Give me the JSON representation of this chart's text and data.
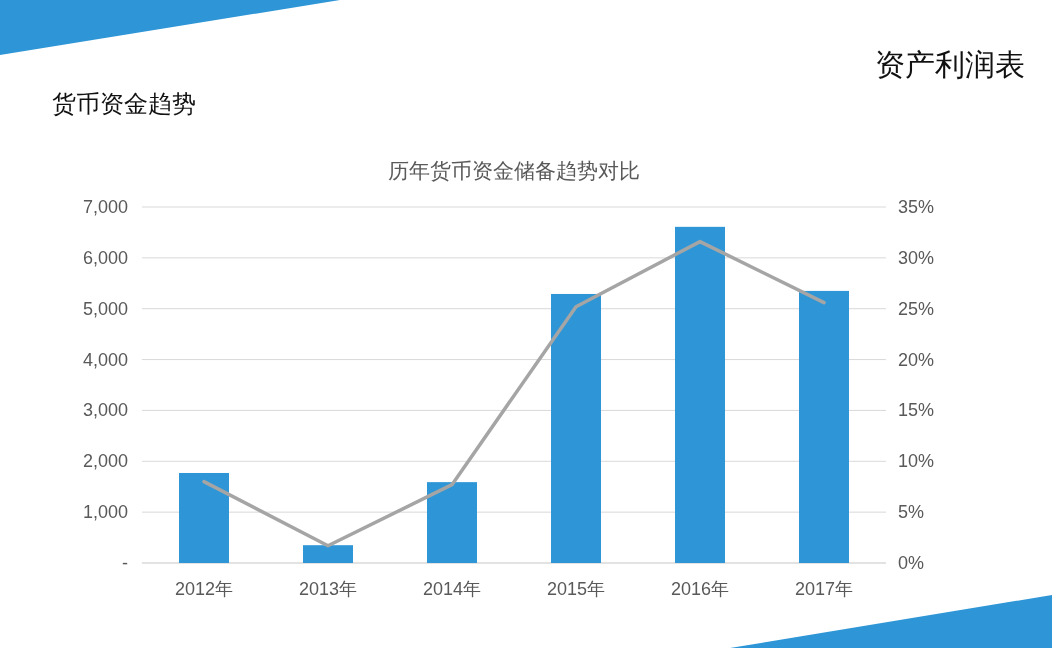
{
  "chart_data": {
    "type": "bar",
    "title": "历年货币资金储备趋势对比",
    "annotations": [
      "货币资金趋势",
      "资产利润表"
    ],
    "categories": [
      "2012年",
      "2013年",
      "2014年",
      "2015年",
      "2016年",
      "2017年"
    ],
    "series": [
      {
        "color": "#2e96d6",
        "values": [
          1770,
          350,
          1590,
          5290,
          6610,
          5350
        ]
      },
      {
        "type": "line",
        "axis": "y2",
        "color": "#a5a5a5",
        "values": [
          8.0,
          1.7,
          7.7,
          25.2,
          31.6,
          25.6
        ]
      }
    ],
    "ylim": [
      0,
      7000
    ],
    "yticks": [
      {
        "value": 0,
        "label": "-"
      },
      {
        "value": 1000,
        "label": "1,000"
      },
      {
        "value": 2000,
        "label": "2,000"
      },
      {
        "value": 3000,
        "label": "3,000"
      },
      {
        "value": 4000,
        "label": "4,000"
      },
      {
        "value": 5000,
        "label": "5,000"
      },
      {
        "value": 6000,
        "label": "6,000"
      },
      {
        "value": 7000,
        "label": "7,000"
      }
    ],
    "y2lim": [
      0,
      35
    ],
    "y2ticks": [
      {
        "value": 0,
        "label": "0%"
      },
      {
        "value": 5,
        "label": "5%"
      },
      {
        "value": 10,
        "label": "10%"
      },
      {
        "value": 15,
        "label": "15%"
      },
      {
        "value": 20,
        "label": "20%"
      },
      {
        "value": 25,
        "label": "25%"
      },
      {
        "value": 30,
        "label": "30%"
      },
      {
        "value": 35,
        "label": "35%"
      }
    ],
    "grid": "y",
    "marker": "none",
    "line_style": "solid"
  }
}
